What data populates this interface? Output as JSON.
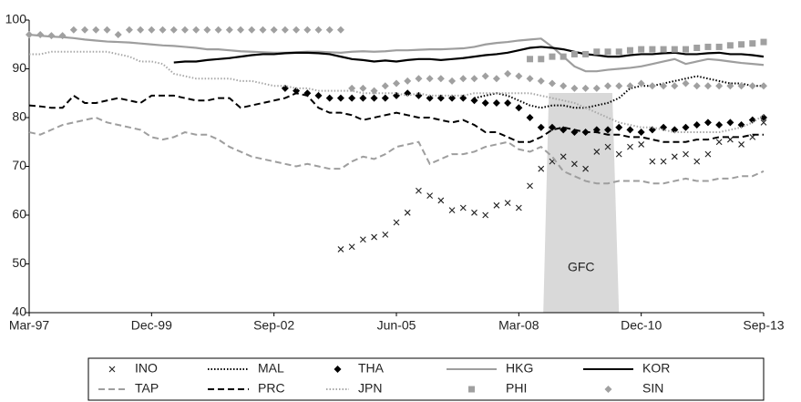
{
  "chart_data": {
    "type": "line",
    "annotation": "GFC",
    "categories": [
      "Mar-97",
      null,
      null,
      null,
      null,
      null,
      null,
      null,
      null,
      null,
      null,
      "Dec-99",
      null,
      null,
      null,
      null,
      null,
      null,
      null,
      null,
      null,
      null,
      "Sep-02",
      null,
      null,
      null,
      null,
      null,
      null,
      null,
      null,
      null,
      null,
      "Jun-05",
      null,
      null,
      null,
      null,
      null,
      null,
      null,
      null,
      null,
      null,
      "Mar-08",
      null,
      null,
      null,
      null,
      null,
      null,
      null,
      null,
      null,
      null,
      "Dec-10",
      null,
      null,
      null,
      null,
      null,
      null,
      null,
      null,
      null,
      null,
      "Sep-13"
    ],
    "ylim": [
      40,
      100
    ],
    "yticks": [
      40,
      50,
      60,
      70,
      80,
      90,
      100
    ],
    "grid": false,
    "series": [
      {
        "name": "INO",
        "color": "#222222",
        "style": "marker",
        "marker": "x",
        "values": [
          null,
          null,
          null,
          null,
          null,
          null,
          null,
          null,
          null,
          null,
          null,
          null,
          null,
          null,
          null,
          null,
          null,
          null,
          null,
          null,
          null,
          null,
          null,
          null,
          null,
          null,
          null,
          null,
          53,
          53.5,
          55,
          55.5,
          56,
          58.5,
          60.5,
          65,
          64,
          63,
          61,
          61.5,
          60.5,
          60,
          62,
          62.5,
          61.5,
          66,
          69.5,
          71,
          72,
          70.5,
          69.5,
          73,
          74,
          72.5,
          74,
          74.5,
          71,
          71,
          72,
          72.5,
          71,
          72.5,
          75,
          75.5,
          74.5,
          76,
          79
        ]
      },
      {
        "name": "MAL",
        "color": "#000000",
        "style": "dotted",
        "values": [
          null,
          null,
          null,
          null,
          null,
          null,
          null,
          null,
          null,
          null,
          null,
          null,
          null,
          null,
          null,
          null,
          null,
          null,
          null,
          null,
          null,
          null,
          null,
          null,
          null,
          null,
          null,
          null,
          null,
          null,
          null,
          null,
          null,
          null,
          null,
          null,
          null,
          null,
          null,
          null,
          84,
          84.5,
          85,
          84.5,
          83.5,
          82.5,
          82,
          82.5,
          82.5,
          82,
          82,
          82.5,
          83,
          84,
          86,
          86.5,
          86.5,
          87,
          87.5,
          88,
          88.5,
          88,
          87.5,
          87,
          87,
          86.5,
          86.5
        ]
      },
      {
        "name": "THA",
        "color": "#000000",
        "style": "marker",
        "marker": "diamond",
        "values": [
          null,
          null,
          null,
          null,
          null,
          null,
          null,
          null,
          null,
          null,
          null,
          null,
          null,
          null,
          null,
          null,
          null,
          null,
          null,
          null,
          null,
          null,
          null,
          86,
          85.5,
          85,
          84.5,
          84,
          84,
          84,
          84,
          84,
          84,
          84.5,
          85,
          84.5,
          84,
          84,
          84,
          84,
          83.5,
          83,
          83,
          83,
          82,
          80,
          78,
          78,
          77.5,
          77,
          77,
          77.5,
          77.5,
          78,
          77.5,
          77,
          77.5,
          78,
          77.5,
          78,
          78.5,
          79,
          78.5,
          79,
          78.5,
          79.5,
          80
        ]
      },
      {
        "name": "HKG",
        "color": "#9e9e9e",
        "style": "solid",
        "values": [
          97,
          96.8,
          96.6,
          96.5,
          96.3,
          96,
          95.8,
          95.6,
          95.5,
          95.4,
          95.2,
          95,
          94.8,
          94.7,
          94.5,
          94.3,
          94,
          94,
          93.8,
          93.6,
          93.5,
          93.4,
          93.3,
          93.3,
          93.4,
          93.5,
          93.5,
          93.4,
          93.3,
          93.5,
          93.6,
          93.5,
          93.6,
          93.8,
          93.8,
          93.9,
          94,
          94,
          94.1,
          94.2,
          94.5,
          95,
          95.3,
          95.5,
          95.8,
          96,
          96.2,
          94.5,
          92.5,
          90.5,
          89.5,
          89.5,
          89.8,
          90,
          90.2,
          90.5,
          91,
          91.5,
          92,
          91,
          91.5,
          92,
          91.8,
          91.5,
          91.2,
          91,
          90.8
        ]
      },
      {
        "name": "KOR",
        "color": "#000000",
        "style": "solid",
        "values": [
          null,
          null,
          null,
          null,
          null,
          null,
          null,
          null,
          null,
          null,
          null,
          null,
          null,
          91.3,
          91.5,
          91.5,
          91.8,
          92,
          92.2,
          92.5,
          92.8,
          93,
          93,
          93.2,
          93.3,
          93.3,
          93.2,
          93,
          92.5,
          92,
          91.8,
          91.5,
          91.7,
          91.5,
          91.8,
          92,
          92,
          91.8,
          92,
          92.2,
          92.5,
          92.8,
          93,
          93.3,
          93.8,
          94.3,
          94.5,
          94.3,
          94,
          93.5,
          93,
          92.8,
          92.5,
          92.5,
          92.8,
          93,
          93,
          93.2,
          93.3,
          93,
          93,
          93.2,
          93.3,
          93,
          93,
          92.8,
          92.5
        ]
      },
      {
        "name": "TAP",
        "color": "#9e9e9e",
        "style": "dashed",
        "values": [
          77,
          76.5,
          77.5,
          78.5,
          79,
          79.5,
          80,
          79,
          78.5,
          78,
          77.5,
          76,
          75.5,
          76,
          77,
          76.5,
          76.5,
          75.5,
          74,
          73,
          72,
          71.5,
          71,
          70.5,
          70,
          70.5,
          70,
          69.5,
          69.5,
          71,
          72,
          71.5,
          72.5,
          74,
          74.5,
          75,
          70.5,
          71.5,
          72.5,
          72.5,
          73,
          74,
          74.5,
          75,
          73.5,
          73,
          74,
          72,
          69,
          68,
          67,
          66.5,
          66.5,
          67,
          67,
          67,
          66.5,
          66.5,
          67,
          67.5,
          67,
          67,
          67.5,
          67.5,
          68,
          68,
          69
        ]
      },
      {
        "name": "PRC",
        "color": "#000000",
        "style": "dashed",
        "values": [
          82.5,
          82.3,
          82,
          82,
          84.5,
          83,
          83,
          83.5,
          84,
          83.5,
          83,
          84.5,
          84.5,
          84.5,
          84,
          83.5,
          83.5,
          84,
          84,
          82,
          82.5,
          83,
          83.5,
          84,
          85,
          84.5,
          82,
          81,
          81,
          80.5,
          79.5,
          80,
          80.5,
          81,
          80.5,
          80,
          80,
          79.5,
          79,
          79.5,
          78.5,
          77,
          77,
          76,
          75,
          75,
          76,
          77.5,
          78,
          77.5,
          77,
          77,
          76.5,
          76.5,
          76,
          76,
          75.5,
          75,
          75,
          75,
          75.5,
          75.5,
          76,
          76,
          76,
          76.5,
          76.5
        ]
      },
      {
        "name": "JPN",
        "color": "#a8a8a8",
        "style": "dotted",
        "values": [
          93,
          93,
          93.5,
          93.5,
          93.5,
          93.5,
          93.5,
          93.5,
          93,
          92.5,
          91.5,
          91.5,
          91,
          89,
          88.5,
          88,
          88,
          88,
          88,
          87.5,
          87.5,
          87,
          86.5,
          86.5,
          86,
          86,
          85.5,
          85.5,
          85.5,
          85.5,
          85,
          85,
          85,
          85,
          84.5,
          85,
          84.5,
          84.5,
          84.5,
          84.5,
          85,
          85,
          85,
          85,
          85,
          85,
          84.5,
          84,
          83.5,
          83,
          82,
          81,
          80,
          79,
          78.5,
          78,
          78,
          77.5,
          77,
          77,
          77,
          77,
          77,
          77.5,
          78,
          79,
          80.5
        ]
      },
      {
        "name": "PHI",
        "color": "#a0a0a0",
        "style": "marker",
        "marker": "square",
        "values": [
          null,
          null,
          null,
          null,
          null,
          null,
          null,
          null,
          null,
          null,
          null,
          null,
          null,
          null,
          null,
          null,
          null,
          null,
          null,
          null,
          null,
          null,
          null,
          null,
          null,
          null,
          null,
          null,
          null,
          null,
          null,
          null,
          null,
          null,
          null,
          null,
          null,
          null,
          null,
          null,
          null,
          null,
          null,
          null,
          null,
          92,
          92,
          92.5,
          92.5,
          93,
          93,
          93.5,
          93.5,
          93.5,
          93.8,
          94,
          94,
          94,
          94,
          94,
          94.3,
          94.5,
          94.5,
          94.8,
          95,
          95.2,
          95.5
        ]
      },
      {
        "name": "SIN",
        "color": "#a0a0a0",
        "style": "marker",
        "marker": "diamond",
        "values": [
          97,
          97,
          96.8,
          96.8,
          98,
          98,
          98,
          98,
          97,
          98,
          98,
          98,
          98,
          98,
          98,
          98,
          98,
          98,
          98,
          98,
          98,
          98,
          98,
          98,
          98,
          98,
          98,
          98,
          98,
          86,
          86,
          85.5,
          86.5,
          87,
          87.5,
          88,
          88,
          88,
          87.5,
          88,
          88,
          88.5,
          88,
          89,
          88.5,
          88,
          87.5,
          87,
          86.5,
          86,
          86,
          86,
          86.5,
          86.5,
          86.5,
          87,
          86.5,
          86.5,
          86.5,
          87,
          86.5,
          86.5,
          86.5,
          86.5,
          86.5,
          86.5,
          86.5
        ]
      }
    ]
  }
}
